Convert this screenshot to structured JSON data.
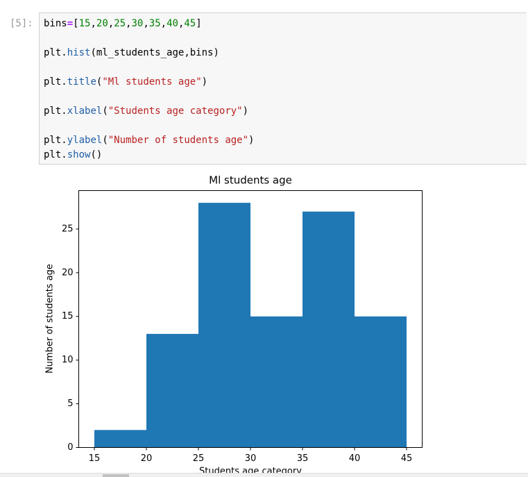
{
  "cell": {
    "prompt": "[5]:",
    "code": "bins=[15,20,25,30,35,40,45]\n\nplt.hist(ml_students_age,bins)\n\nplt.title(\"Ml students age\")\n\nplt.xlabel(\"Students age category\")\n\nplt.ylabel(\"Number of students age\")\nplt.show()"
  },
  "chart_data": {
    "type": "histogram",
    "title": "Ml students age",
    "x_label": "Students age category",
    "y_label": "Number of students age",
    "bins": [
      15,
      20,
      25,
      30,
      35,
      40,
      45
    ],
    "values": [
      2,
      13,
      28,
      15,
      27,
      15
    ],
    "color": "#1f77b4",
    "xlim": [
      13.5,
      46.5
    ],
    "xticks": [
      15,
      20,
      25,
      30,
      35,
      40,
      45
    ],
    "ylim": [
      0,
      29.4
    ],
    "yticks": [
      0,
      5,
      10,
      15,
      20,
      25
    ],
    "grid": false
  }
}
